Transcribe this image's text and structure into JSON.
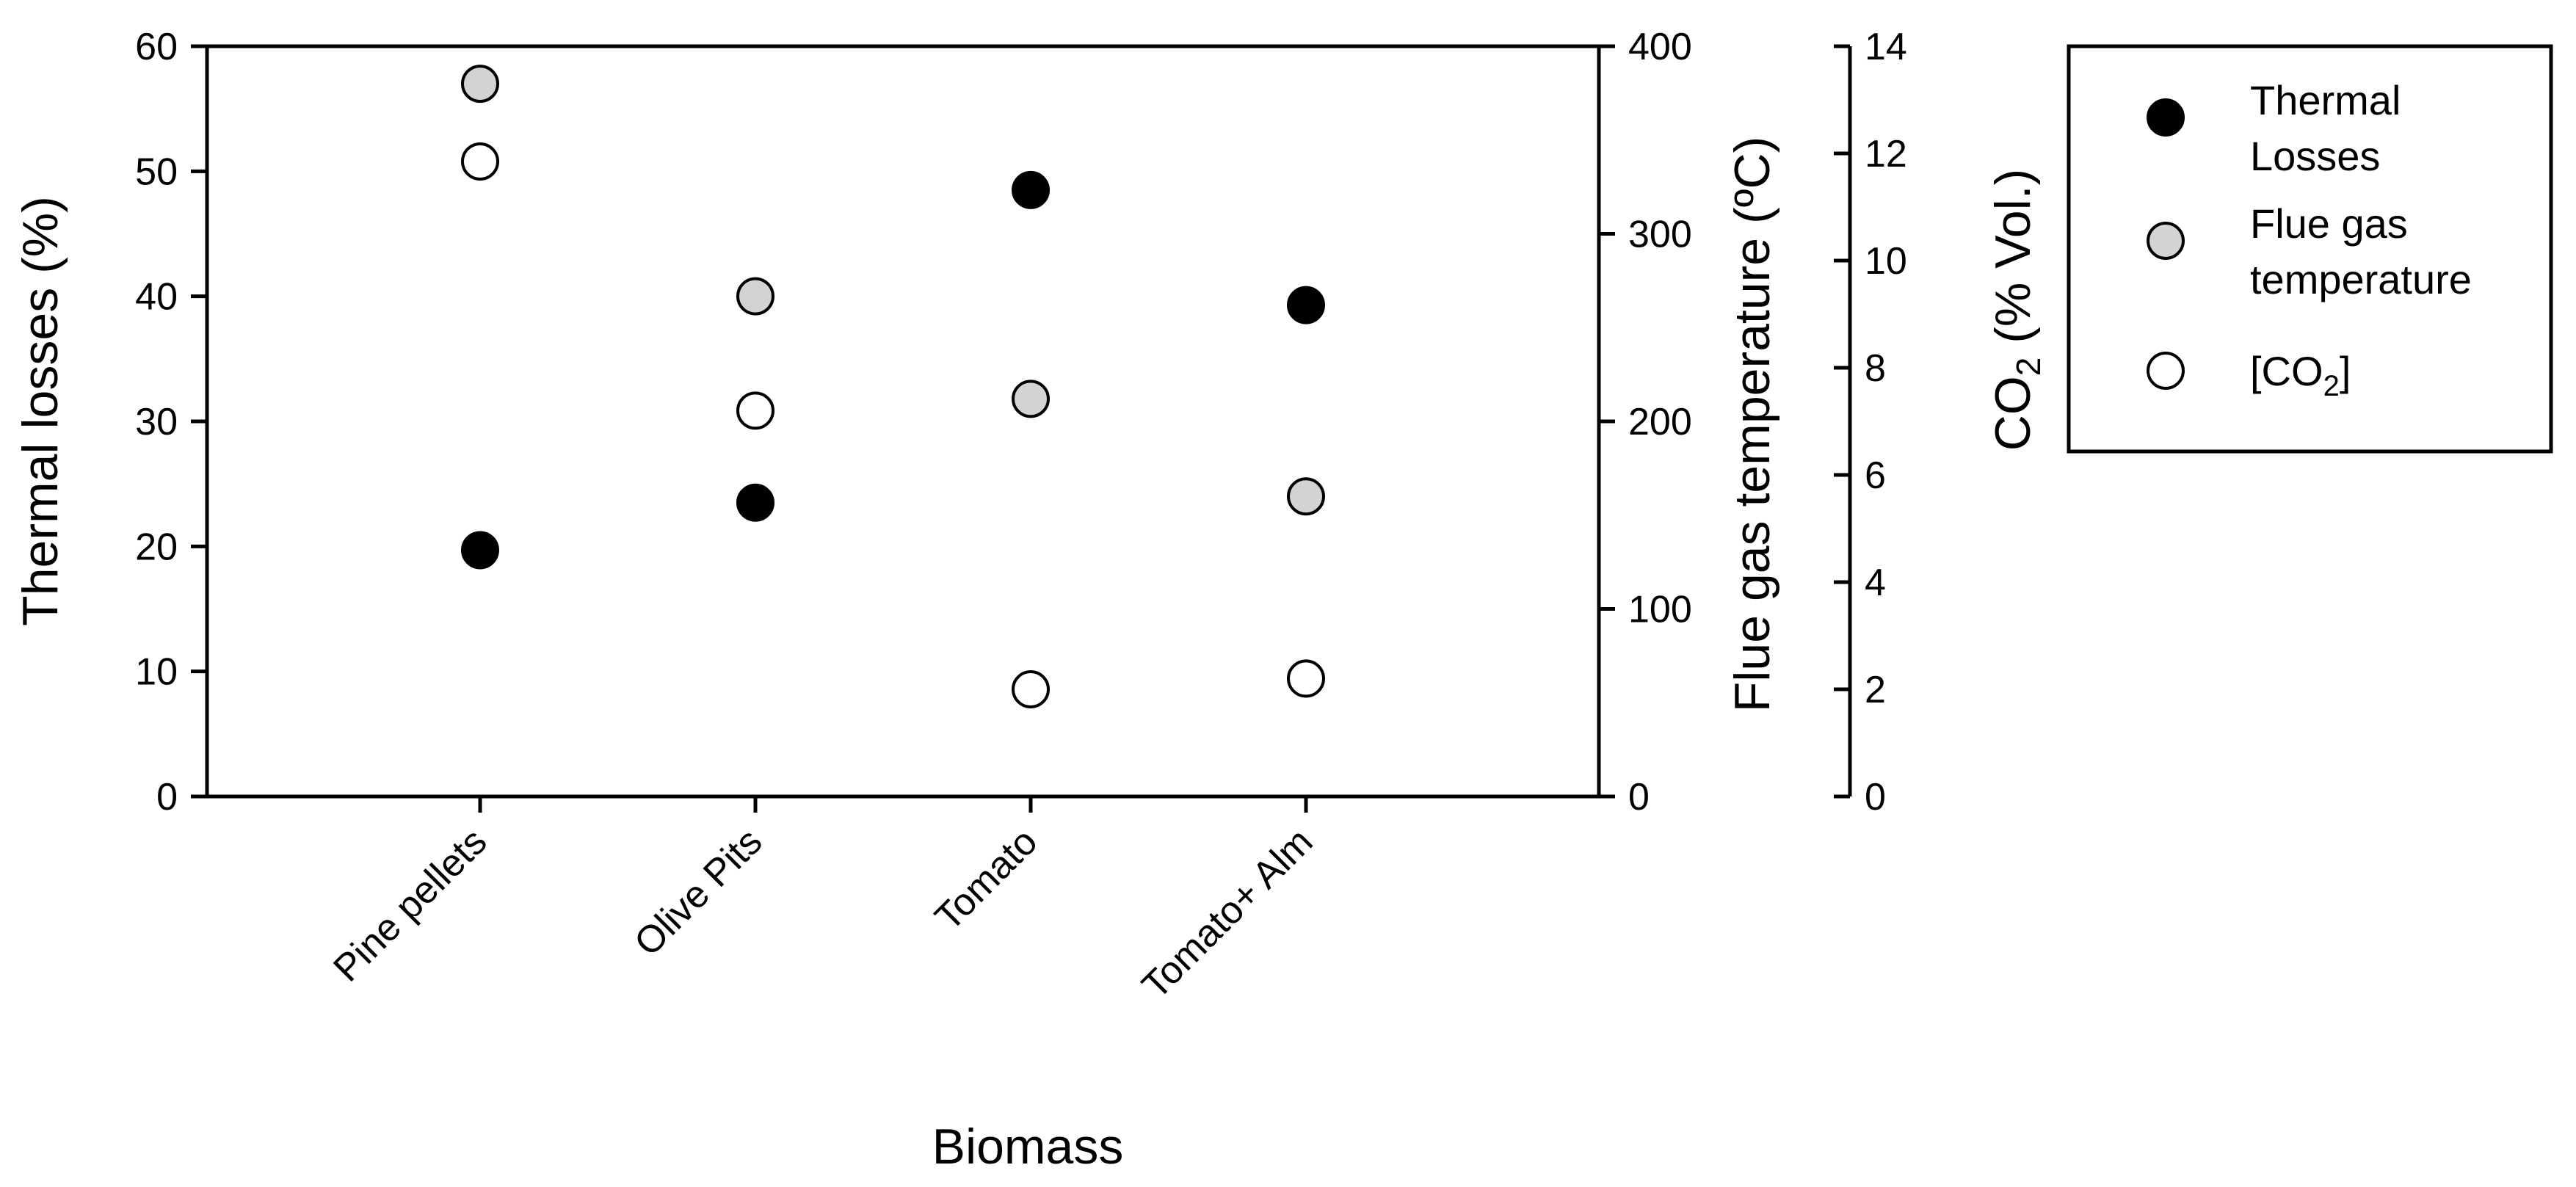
{
  "chart_data": {
    "type": "scatter",
    "xlabel": "Biomass",
    "categories": [
      "Pine pellets",
      "Olive Pits",
      "Tomato",
      "Tomato+ Alm"
    ],
    "axes": {
      "left": {
        "title": "Thermal losses (%)",
        "range": [
          0,
          60
        ],
        "ticks": [
          "0",
          "10",
          "20",
          "30",
          "40",
          "50",
          "60"
        ]
      },
      "right1": {
        "title": "Flue gas temperature (ºC)",
        "range": [
          0,
          400
        ],
        "ticks": [
          "0",
          "100",
          "200",
          "300",
          "400"
        ]
      },
      "right2": {
        "title_main": "CO",
        "title_sub": "2",
        "title_rest": " (% Vol.)",
        "range": [
          0,
          14
        ],
        "ticks": [
          "0",
          "2",
          "4",
          "6",
          "8",
          "10",
          "12",
          "14"
        ]
      }
    },
    "series": [
      {
        "name": "Thermal Losses",
        "axis": "left",
        "fill": "#000000",
        "values": [
          19.7,
          23.5,
          48.5,
          39.3
        ]
      },
      {
        "name": "Flue gas temperature",
        "axis": "right1",
        "fill": "#d3d3d3",
        "values": [
          380,
          266.7,
          212,
          160
        ]
      },
      {
        "name": "[CO2]",
        "axis": "right2",
        "fill": "#ffffff",
        "values": [
          11.85,
          7.2,
          2.0,
          2.2
        ]
      }
    ],
    "legend": {
      "position": "right",
      "items": [
        {
          "lines": [
            "Thermal",
            "Losses"
          ],
          "fill": "#000000"
        },
        {
          "lines": [
            "Flue gas",
            "temperature"
          ],
          "fill": "#d3d3d3"
        },
        {
          "lines": [
            "[CO"
          ],
          "sub": "2",
          "after": "]",
          "fill": "#ffffff"
        }
      ]
    }
  }
}
